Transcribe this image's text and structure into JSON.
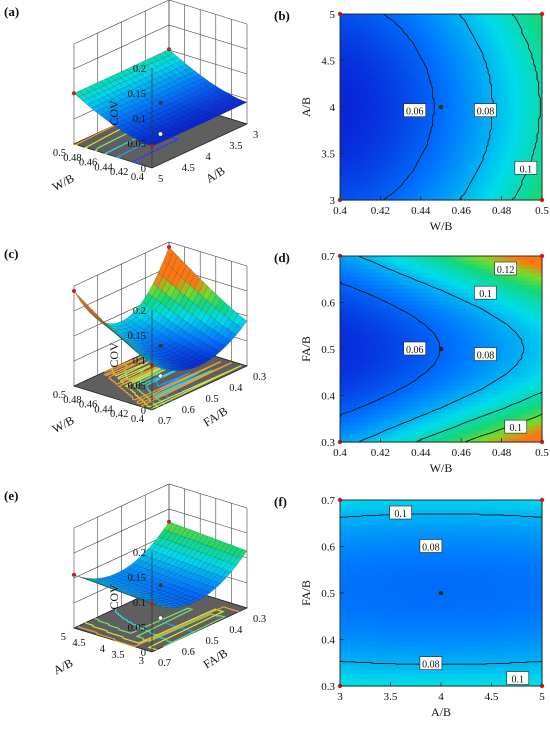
{
  "figure": {
    "panels": [
      {
        "id": "a",
        "label": "(a)",
        "kind": "surface",
        "zlabel": "COV",
        "zticks": [
          "0.2",
          "0.15",
          "0.1",
          "0.05",
          "0"
        ],
        "xlabel": "W/B",
        "xticks": [
          "0.5",
          "0.48",
          "0.46",
          "0.44",
          "0.42",
          "0.4"
        ],
        "ylabel": "A/B",
        "yticks": [
          "5",
          "4.5",
          "4",
          "3.5",
          "3"
        ]
      },
      {
        "id": "b",
        "label": "(b)",
        "kind": "contour",
        "xlabel": "W/B",
        "ylabel": "A/B",
        "xticks": [
          "0.4",
          "0.42",
          "0.44",
          "0.46",
          "0.48",
          "0.5"
        ],
        "yticks": [
          "3",
          "3.5",
          "4",
          "4.5",
          "5"
        ],
        "contour_labels": [
          "0.06",
          "0.08",
          "0.1"
        ]
      },
      {
        "id": "c",
        "label": "(c)",
        "kind": "surface",
        "zlabel": "COV",
        "zticks": [
          "0.2",
          "0.15",
          "0.1",
          "0.05",
          "0"
        ],
        "xlabel": "W/B",
        "xticks": [
          "0.5",
          "0.48",
          "0.46",
          "0.44",
          "0.42",
          "0.4"
        ],
        "ylabel": "FA/B",
        "yticks": [
          "0.7",
          "0.6",
          "0.5",
          "0.4",
          "0.3"
        ]
      },
      {
        "id": "d",
        "label": "(d)",
        "kind": "contour",
        "xlabel": "W/B",
        "ylabel": "FA/B",
        "xticks": [
          "0.4",
          "0.42",
          "0.44",
          "0.46",
          "0.48",
          "0.5"
        ],
        "yticks": [
          "0.3",
          "0.4",
          "0.5",
          "0.6",
          "0.7"
        ],
        "contour_labels": [
          "0.12",
          "0.1",
          "0.06",
          "0.08",
          "0.1"
        ]
      },
      {
        "id": "e",
        "label": "(e)",
        "kind": "surface",
        "zlabel": "COV",
        "zticks": [
          "0.2",
          "0.15",
          "0.1",
          "0.05",
          "0"
        ],
        "xlabel": "A/B",
        "xticks": [
          "5",
          "4.5",
          "4",
          "3.5",
          "3"
        ],
        "ylabel": "FA/B",
        "yticks": [
          "0.7",
          "0.6",
          "0.5",
          "0.4",
          "0.3"
        ]
      },
      {
        "id": "f",
        "label": "(f)",
        "kind": "contour",
        "xlabel": "A/B",
        "ylabel": "FA/B",
        "xticks": [
          "3",
          "3.5",
          "4",
          "4.5",
          "5"
        ],
        "yticks": [
          "0.3",
          "0.4",
          "0.5",
          "0.6",
          "0.7"
        ],
        "contour_labels": [
          "0.1",
          "0.08",
          "0.08",
          "0.1"
        ]
      }
    ]
  },
  "chart_data": [
    {
      "type": "heatmap",
      "panel": "a",
      "title": "",
      "xlabel": "W/B",
      "ylabel": "A/B",
      "zlabel": "COV",
      "xlim": [
        0.4,
        0.5
      ],
      "ylim": [
        3,
        5
      ],
      "zlim": [
        0,
        0.2
      ],
      "center_point": {
        "x": 0.45,
        "y": 4,
        "z": 0.062
      }
    },
    {
      "type": "heatmap",
      "panel": "b",
      "title": "",
      "xlabel": "W/B",
      "ylabel": "A/B",
      "xlim": [
        0.4,
        0.5
      ],
      "ylim": [
        3,
        5
      ],
      "contour_levels": [
        0.06,
        0.08,
        0.1
      ],
      "center_point": {
        "x": 0.45,
        "y": 4
      }
    },
    {
      "type": "heatmap",
      "panel": "c",
      "title": "",
      "xlabel": "W/B",
      "ylabel": "FA/B",
      "zlabel": "COV",
      "xlim": [
        0.4,
        0.5
      ],
      "ylim": [
        0.3,
        0.7
      ],
      "zlim": [
        0,
        0.2
      ],
      "center_point": {
        "x": 0.45,
        "y": 0.5,
        "z": 0.062
      }
    },
    {
      "type": "heatmap",
      "panel": "d",
      "title": "",
      "xlabel": "W/B",
      "ylabel": "FA/B",
      "xlim": [
        0.4,
        0.5
      ],
      "ylim": [
        0.3,
        0.7
      ],
      "contour_levels": [
        0.06,
        0.08,
        0.1,
        0.12
      ],
      "center_point": {
        "x": 0.45,
        "y": 0.5
      }
    },
    {
      "type": "heatmap",
      "panel": "e",
      "title": "",
      "xlabel": "A/B",
      "ylabel": "FA/B",
      "zlabel": "COV",
      "xlim": [
        3,
        5
      ],
      "ylim": [
        0.3,
        0.7
      ],
      "zlim": [
        0,
        0.2
      ],
      "center_point": {
        "x": 4,
        "y": 0.5,
        "z": 0.062
      }
    },
    {
      "type": "heatmap",
      "panel": "f",
      "title": "",
      "xlabel": "A/B",
      "ylabel": "FA/B",
      "xlim": [
        3,
        5
      ],
      "ylim": [
        0.3,
        0.7
      ],
      "contour_levels": [
        0.08,
        0.1
      ],
      "center_point": {
        "x": 4,
        "y": 0.5
      }
    }
  ]
}
